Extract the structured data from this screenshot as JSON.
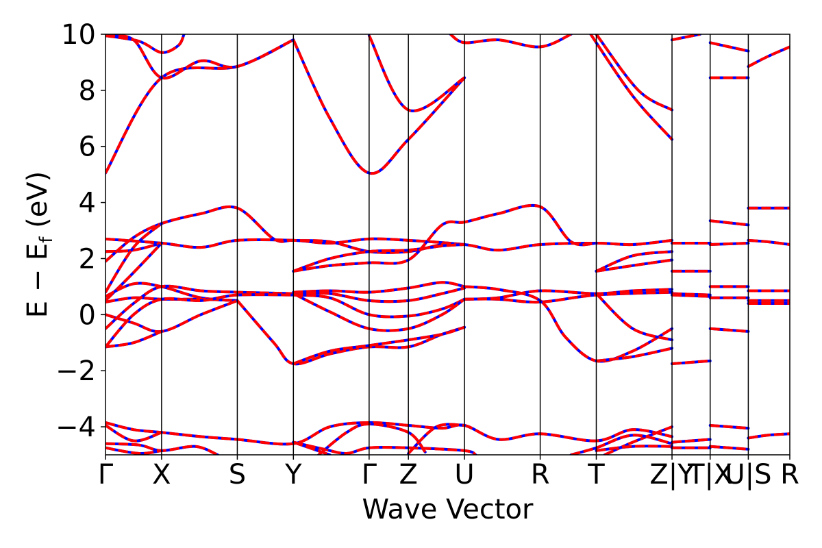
{
  "chart_data": {
    "type": "line",
    "xlabel": "Wave Vector",
    "ylabel": {
      "main": "E − E",
      "sub": "f",
      "unit": " (eV)"
    },
    "ylim": [
      -5,
      10
    ],
    "yticks": [
      -4,
      -2,
      0,
      2,
      4,
      6,
      8,
      10
    ],
    "ytick_labels": [
      "−4",
      "−2",
      "0",
      "2",
      "4",
      "6",
      "8",
      "10"
    ],
    "xlim": [
      0,
      12.2
    ],
    "kpoints": [
      {
        "x": 0.0,
        "label": "Γ"
      },
      {
        "x": 1.0,
        "label": "X"
      },
      {
        "x": 2.35,
        "label": "S"
      },
      {
        "x": 3.35,
        "label": "Y"
      },
      {
        "x": 4.7,
        "label": "Γ"
      },
      {
        "x": 5.4,
        "label": "Z"
      },
      {
        "x": 6.4,
        "label": "U"
      },
      {
        "x": 7.75,
        "label": "R"
      },
      {
        "x": 8.75,
        "label": "T"
      },
      {
        "x": 10.1,
        "label": "Z|Y"
      },
      {
        "x": 10.78,
        "label": "T|X"
      },
      {
        "x": 11.46,
        "label": "U|S"
      },
      {
        "x": 12.2,
        "label": "R"
      }
    ],
    "grid": false,
    "legend": "none",
    "series_style": {
      "lower_color": "#0000ff",
      "upper_color": "#ff0000",
      "upper_dash": "dashed"
    },
    "bands": [
      [
        [
          0,
          5.05
        ],
        [
          1,
          8.45
        ],
        [
          2.35,
          8.85
        ],
        [
          3.35,
          9.8
        ]
      ],
      [
        [
          0,
          9.95
        ],
        [
          0.5,
          9.8
        ],
        [
          1,
          8.45
        ],
        [
          1.7,
          9.05
        ],
        [
          2.35,
          8.85
        ],
        [
          3.35,
          9.8
        ]
      ],
      [
        [
          0,
          9.95
        ],
        [
          0.6,
          9.75
        ],
        [
          1,
          9.35
        ],
        [
          1.3,
          9.6
        ],
        [
          1.4,
          10
        ]
      ],
      [
        [
          3.35,
          9.8
        ],
        [
          4.0,
          7.0
        ],
        [
          4.7,
          5.05
        ],
        [
          5.4,
          6.25
        ],
        [
          6.4,
          8.45
        ]
      ],
      [
        [
          4.7,
          9.95
        ],
        [
          5.4,
          7.3
        ],
        [
          6.4,
          8.45
        ]
      ],
      [
        [
          6.15,
          10
        ],
        [
          6.4,
          9.7
        ],
        [
          7.0,
          9.8
        ],
        [
          7.75,
          9.55
        ],
        [
          8.3,
          10
        ]
      ],
      [
        [
          8.75,
          10
        ],
        [
          9.5,
          8.0
        ],
        [
          10.1,
          7.3
        ]
      ],
      [
        [
          8.65,
          10
        ],
        [
          9.4,
          7.8
        ],
        [
          10.1,
          6.25
        ]
      ],
      [
        [
          0,
          2.7
        ],
        [
          1,
          2.55
        ],
        [
          1.7,
          2.4
        ],
        [
          2.35,
          2.65
        ],
        [
          3.35,
          2.65
        ],
        [
          4.0,
          2.55
        ],
        [
          4.7,
          2.7
        ],
        [
          5.4,
          2.65
        ],
        [
          6.4,
          2.5
        ],
        [
          7.0,
          2.3
        ],
        [
          7.75,
          2.5
        ],
        [
          8.75,
          2.55
        ],
        [
          9.4,
          2.5
        ],
        [
          10.1,
          2.65
        ]
      ],
      [
        [
          0,
          2.25
        ],
        [
          0.5,
          2.3
        ],
        [
          1,
          2.55
        ]
      ],
      [
        [
          0,
          1.9
        ],
        [
          0.5,
          2.75
        ],
        [
          1,
          3.25
        ],
        [
          1.7,
          3.6
        ],
        [
          2.35,
          3.8
        ],
        [
          3.0,
          2.7
        ],
        [
          3.35,
          2.65
        ],
        [
          4.0,
          2.6
        ],
        [
          4.7,
          2.25
        ],
        [
          5.4,
          2.25
        ],
        [
          6.0,
          2.5
        ],
        [
          6.4,
          2.5
        ]
      ],
      [
        [
          0,
          0.8
        ],
        [
          0.5,
          2.4
        ],
        [
          1,
          3.25
        ]
      ],
      [
        [
          0,
          0.5
        ],
        [
          0.5,
          1.5
        ],
        [
          1,
          2.55
        ]
      ],
      [
        [
          3.35,
          1.55
        ],
        [
          4.0,
          2.0
        ],
        [
          4.7,
          2.25
        ],
        [
          5.4,
          2.3
        ],
        [
          6.0,
          2.45
        ],
        [
          6.4,
          2.5
        ]
      ],
      [
        [
          3.35,
          1.55
        ],
        [
          4.0,
          1.75
        ],
        [
          4.7,
          1.85
        ],
        [
          5.4,
          1.95
        ],
        [
          6.0,
          3.2
        ],
        [
          6.4,
          3.3
        ],
        [
          7.0,
          3.6
        ],
        [
          7.75,
          3.85
        ],
        [
          8.3,
          2.6
        ],
        [
          8.75,
          2.55
        ]
      ],
      [
        [
          8.75,
          1.55
        ],
        [
          9.4,
          2.1
        ],
        [
          10.1,
          2.25
        ]
      ],
      [
        [
          8.75,
          1.55
        ],
        [
          9.4,
          1.75
        ],
        [
          10.1,
          1.95
        ]
      ],
      [
        [
          0,
          0.65
        ],
        [
          0.5,
          1.1
        ],
        [
          1,
          1.0
        ],
        [
          1.7,
          0.6
        ],
        [
          2.35,
          0.5
        ]
      ],
      [
        [
          0,
          0.45
        ],
        [
          0.5,
          0.6
        ],
        [
          1,
          0.55
        ],
        [
          1.7,
          0.55
        ],
        [
          2.35,
          0.5
        ]
      ],
      [
        [
          0,
          0.0
        ],
        [
          0.5,
          -0.3
        ],
        [
          1,
          -0.6
        ],
        [
          1.7,
          0.0
        ],
        [
          2.35,
          0.5
        ]
      ],
      [
        [
          0,
          -0.5
        ],
        [
          0.5,
          0.4
        ],
        [
          1,
          1.0
        ],
        [
          1.7,
          0.85
        ],
        [
          2.35,
          0.8
        ],
        [
          3.35,
          0.75
        ]
      ],
      [
        [
          0,
          -1.15
        ],
        [
          0.5,
          -1.0
        ],
        [
          1,
          -0.6
        ]
      ],
      [
        [
          0,
          -1.15
        ],
        [
          0.5,
          0.0
        ],
        [
          1,
          0.55
        ],
        [
          1.7,
          0.5
        ],
        [
          2.35,
          0.7
        ],
        [
          3.35,
          0.7
        ]
      ],
      [
        [
          2.35,
          0.5
        ],
        [
          3.0,
          -1.0
        ],
        [
          3.35,
          -1.75
        ],
        [
          4.0,
          -1.4
        ],
        [
          4.7,
          -1.15
        ],
        [
          5.4,
          -1.15
        ],
        [
          6.0,
          -0.7
        ],
        [
          6.4,
          -0.45
        ]
      ],
      [
        [
          3.35,
          -1.75
        ],
        [
          4.0,
          -1.3
        ],
        [
          4.7,
          -1.1
        ],
        [
          5.4,
          -0.9
        ],
        [
          6.0,
          -0.7
        ],
        [
          6.4,
          -0.45
        ]
      ],
      [
        [
          3.35,
          0.8
        ],
        [
          4.0,
          0.85
        ],
        [
          4.7,
          0.8
        ],
        [
          5.4,
          0.95
        ],
        [
          6.0,
          1.15
        ],
        [
          6.4,
          1.0
        ]
      ],
      [
        [
          3.35,
          0.75
        ],
        [
          4.0,
          0.75
        ],
        [
          4.7,
          0.5
        ],
        [
          5.4,
          0.5
        ],
        [
          6.0,
          0.75
        ],
        [
          6.4,
          0.95
        ]
      ],
      [
        [
          3.35,
          0.7
        ],
        [
          4.0,
          0.6
        ],
        [
          4.7,
          0.0
        ],
        [
          5.4,
          -0.05
        ],
        [
          6.0,
          0.2
        ],
        [
          6.4,
          0.55
        ]
      ],
      [
        [
          3.35,
          0.75
        ],
        [
          4.0,
          0.1
        ],
        [
          4.7,
          -0.5
        ],
        [
          5.4,
          -0.5
        ],
        [
          6.0,
          0.0
        ],
        [
          6.4,
          0.55
        ]
      ],
      [
        [
          6.4,
          1.0
        ],
        [
          7.0,
          0.9
        ],
        [
          7.75,
          0.5
        ],
        [
          8.2,
          -0.8
        ],
        [
          8.75,
          -1.65
        ],
        [
          9.4,
          -1.3
        ],
        [
          10.1,
          -0.5
        ]
      ],
      [
        [
          6.4,
          0.55
        ],
        [
          7.0,
          0.6
        ],
        [
          7.75,
          0.85
        ],
        [
          8.75,
          0.75
        ],
        [
          9.4,
          0.85
        ],
        [
          10.1,
          0.9
        ]
      ],
      [
        [
          6.4,
          0.55
        ],
        [
          7.0,
          0.55
        ],
        [
          7.75,
          0.45
        ],
        [
          8.75,
          0.7
        ],
        [
          10.1,
          0.8
        ]
      ],
      [
        [
          8.75,
          -1.65
        ],
        [
          9.4,
          -1.5
        ],
        [
          10.1,
          -1.2
        ]
      ],
      [
        [
          8.75,
          0.75
        ],
        [
          9.4,
          -0.5
        ],
        [
          10.1,
          -0.9
        ]
      ],
      [
        [
          0,
          -3.85
        ],
        [
          0.5,
          -4.1
        ],
        [
          1,
          -4.2
        ],
        [
          1.7,
          -4.35
        ],
        [
          2.35,
          -4.45
        ],
        [
          3.35,
          -4.6
        ],
        [
          4.0,
          -4.0
        ],
        [
          4.7,
          -3.85
        ],
        [
          5.4,
          -3.95
        ],
        [
          6.0,
          -4.05
        ],
        [
          6.4,
          -3.95
        ],
        [
          7.0,
          -4.45
        ],
        [
          7.75,
          -4.25
        ],
        [
          8.75,
          -4.5
        ],
        [
          9.4,
          -4.1
        ],
        [
          10.1,
          -4.35
        ]
      ],
      [
        [
          0,
          -3.95
        ],
        [
          0.5,
          -4.5
        ],
        [
          1,
          -4.2
        ]
      ],
      [
        [
          0,
          -4.6
        ],
        [
          0.6,
          -4.65
        ],
        [
          1,
          -4.85
        ],
        [
          1.6,
          -4.7
        ],
        [
          2.0,
          -5.0
        ]
      ],
      [
        [
          0,
          -4.75
        ],
        [
          0.6,
          -4.95
        ],
        [
          1,
          -4.85
        ]
      ],
      [
        [
          3.35,
          -4.55
        ],
        [
          3.9,
          -4.8
        ],
        [
          4.3,
          -4.95
        ],
        [
          4.7,
          -4.75
        ],
        [
          5.4,
          -4.75
        ],
        [
          6.4,
          -4.85
        ],
        [
          6.6,
          -5.0
        ]
      ],
      [
        [
          3.35,
          -4.55
        ],
        [
          4.0,
          -5.0
        ]
      ],
      [
        [
          3.8,
          -5.0
        ],
        [
          4.3,
          -4.2
        ],
        [
          4.7,
          -3.9
        ],
        [
          5.4,
          -4.2
        ],
        [
          5.7,
          -4.9
        ]
      ],
      [
        [
          5.4,
          -4.95
        ],
        [
          5.9,
          -4.0
        ],
        [
          6.4,
          -3.95
        ]
      ],
      [
        [
          8.9,
          -5.0
        ],
        [
          9.4,
          -4.55
        ],
        [
          10.1,
          -4.0
        ]
      ],
      [
        [
          8.75,
          -4.85
        ],
        [
          9.4,
          -4.7
        ],
        [
          10.1,
          -4.7
        ]
      ],
      [
        [
          8.3,
          -5.0
        ],
        [
          8.75,
          -4.75
        ],
        [
          9.4,
          -4.3
        ],
        [
          10.1,
          -4.6
        ]
      ],
      [
        [
          10.1,
          9.8
        ],
        [
          10.6,
          10.0
        ]
      ],
      [
        [
          10.1,
          2.55
        ],
        [
          10.78,
          2.55
        ]
      ],
      [
        [
          10.1,
          1.55
        ],
        [
          10.78,
          1.55
        ]
      ],
      [
        [
          10.1,
          0.75
        ],
        [
          10.78,
          0.7
        ]
      ],
      [
        [
          10.1,
          0.7
        ],
        [
          10.78,
          0.65
        ]
      ],
      [
        [
          10.1,
          -1.75
        ],
        [
          10.78,
          -1.65
        ]
      ],
      [
        [
          10.1,
          -4.55
        ],
        [
          10.78,
          -4.45
        ]
      ],
      [
        [
          10.1,
          -4.75
        ],
        [
          10.78,
          -4.75
        ]
      ],
      [
        [
          10.78,
          9.7
        ],
        [
          11.46,
          9.4
        ]
      ],
      [
        [
          10.78,
          8.45
        ],
        [
          11.46,
          8.45
        ]
      ],
      [
        [
          10.78,
          3.35
        ],
        [
          11.46,
          3.2
        ]
      ],
      [
        [
          10.78,
          2.5
        ],
        [
          11.46,
          2.55
        ]
      ],
      [
        [
          10.78,
          1.0
        ],
        [
          11.46,
          1.0
        ]
      ],
      [
        [
          10.78,
          0.6
        ],
        [
          11.46,
          0.6
        ]
      ],
      [
        [
          10.78,
          -0.5
        ],
        [
          11.46,
          -0.6
        ]
      ],
      [
        [
          10.78,
          -3.95
        ],
        [
          11.46,
          -4.05
        ]
      ],
      [
        [
          10.78,
          -4.7
        ],
        [
          11.46,
          -4.8
        ]
      ],
      [
        [
          11.46,
          8.85
        ],
        [
          11.8,
          9.2
        ],
        [
          12.2,
          9.55
        ]
      ],
      [
        [
          11.46,
          3.8
        ],
        [
          12.2,
          3.8
        ]
      ],
      [
        [
          11.46,
          2.65
        ],
        [
          11.8,
          2.6
        ],
        [
          12.2,
          2.5
        ]
      ],
      [
        [
          11.46,
          0.85
        ],
        [
          12.2,
          0.85
        ]
      ],
      [
        [
          11.46,
          0.5
        ],
        [
          12.2,
          0.5
        ]
      ],
      [
        [
          11.46,
          0.4
        ],
        [
          12.2,
          0.4
        ]
      ],
      [
        [
          11.46,
          -4.4
        ],
        [
          11.8,
          -4.3
        ],
        [
          12.2,
          -4.25
        ]
      ]
    ]
  }
}
